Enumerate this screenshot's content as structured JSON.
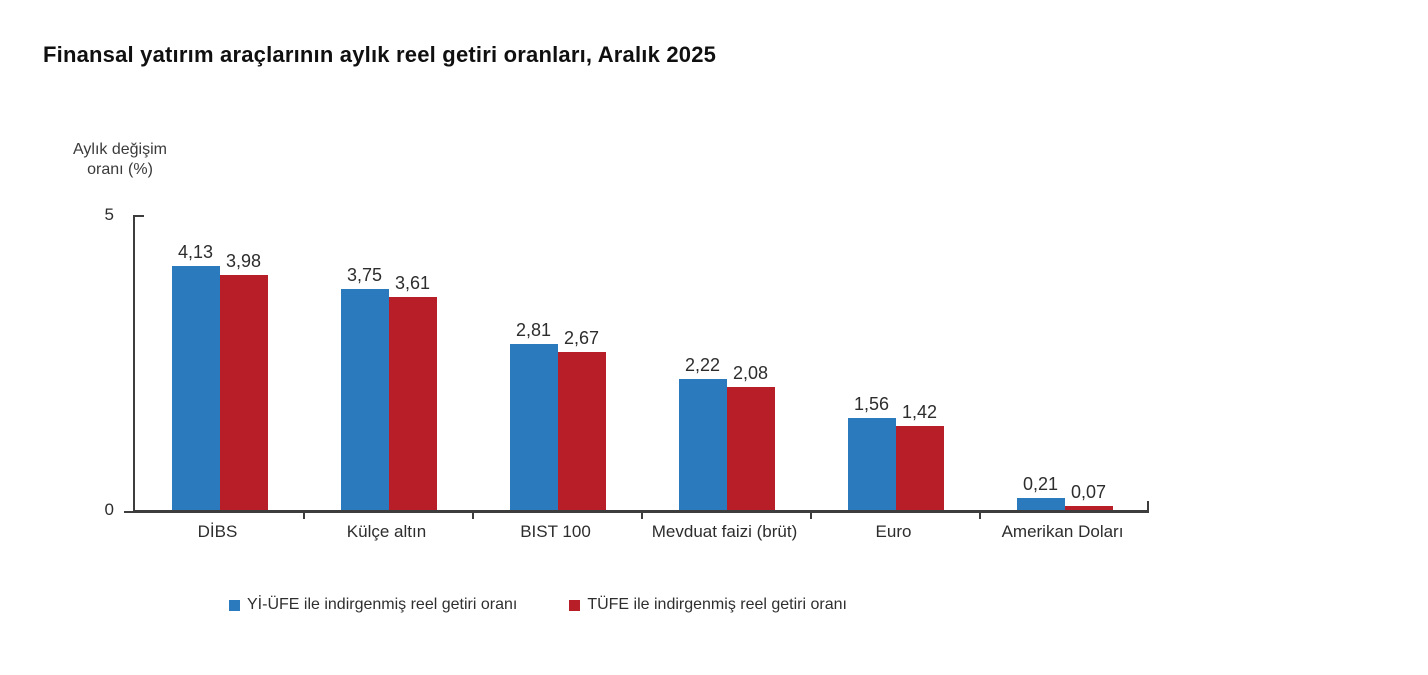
{
  "page": {
    "title": "Finansal yatırım araçlarının aylık reel getiri oranları, Aralık 2025"
  },
  "colors": {
    "series_blue": "#2b7abe",
    "series_red": "#b81e28",
    "axis": "#3d3d3d",
    "text": "#2d2d2d",
    "background": "#ffffff"
  },
  "chart_data": {
    "type": "bar",
    "title": "Finansal yatırım araçlarının aylık reel getiri oranları, Aralık 2025",
    "xlabel": "",
    "ylabel": "Aylık değişim oranı (%)",
    "ylabel_lines": [
      "Aylık değişim",
      "oranı (%)"
    ],
    "ylim": [
      0,
      5
    ],
    "ytick_labels": [
      "5",
      "0"
    ],
    "grid": false,
    "legend_position": "bottom",
    "categories": [
      "DİBS",
      "Külçe altın",
      "BIST 100",
      "Mevduat faizi (brüt)",
      "Euro",
      "Amerikan Doları"
    ],
    "series": [
      {
        "name": "Yİ-ÜFE ile indirgenmiş reel getiri oranı",
        "color": "#2b7abe",
        "values": [
          4.13,
          3.75,
          2.81,
          2.22,
          1.56,
          0.21
        ],
        "labels": [
          "4,13",
          "3,75",
          "2,81",
          "2,22",
          "1,56",
          "0,21"
        ]
      },
      {
        "name": "TÜFE ile indirgenmiş reel getiri oranı",
        "color": "#b81e28",
        "values": [
          3.98,
          3.61,
          2.67,
          2.08,
          1.42,
          0.07
        ],
        "labels": [
          "3,98",
          "3,61",
          "2,67",
          "2,08",
          "1,42",
          "0,07"
        ]
      }
    ]
  }
}
